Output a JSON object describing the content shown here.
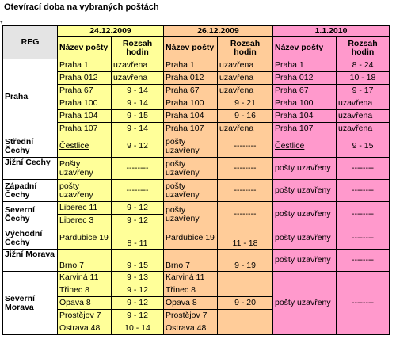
{
  "title": "Otevírací doba na vybraných poštách",
  "colors": {
    "yellow": "#ffff99",
    "orange": "#ffcc99",
    "pink": "#ff99cc",
    "reg": "#e4e4e4"
  },
  "header": {
    "reg": "REG",
    "dates": [
      "24.12.2009",
      "26.12.2009",
      "1.1.2010"
    ],
    "col_name": "Název pošty",
    "col_hours": "Rozsah hodin"
  },
  "regions": {
    "praha": "Praha",
    "stredni": "Střední Čechy",
    "jizni_cechy": "Jižní Čechy",
    "zapadni": "Západní Čechy",
    "severni_cechy": "Severní Čechy",
    "vychodni": "Východní Čechy",
    "jizni_morava": "Jižní Morava",
    "severni_morava": "Severní Morava"
  },
  "praha_rows": [
    {
      "d1n": "Praha 1",
      "d1h": "uzavřena",
      "d2n": "Praha 1",
      "d2h": "uzavřena",
      "d3n": "Praha 1",
      "d3h": "8 - 24"
    },
    {
      "d1n": "Praha 012",
      "d1h": "uzavřena",
      "d2n": "Praha 012",
      "d2h": "uzavřena",
      "d3n": "Praha 012",
      "d3h": "10 - 18"
    },
    {
      "d1n": "Praha 67",
      "d1h": "9 - 14",
      "d2n": "Praha 67",
      "d2h": "uzavřena",
      "d3n": "Praha 67",
      "d3h": "9 - 17"
    },
    {
      "d1n": "Praha 100",
      "d1h": "9 - 14",
      "d2n": "Praha 100",
      "d2h": "9 - 21",
      "d3n": "Praha 100",
      "d3h": "uzavřena"
    },
    {
      "d1n": "Praha 104",
      "d1h": "9 - 15",
      "d2n": "Praha 104",
      "d2h": "9 - 16",
      "d3n": "Praha 104",
      "d3h": "uzavřena"
    },
    {
      "d1n": "Praha 107",
      "d1h": "9 - 14",
      "d2n": "Praha 107",
      "d2h": "uzavřena",
      "d3n": "Praha 107",
      "d3h": "uzavřena"
    }
  ],
  "stredni": {
    "d1n": "Čestlice",
    "d1h": "9 - 12",
    "d2n": "pošty uzavřeny",
    "d2h": "--------",
    "d3n": "Čestlice",
    "d3h": "9 - 15"
  },
  "jizni_cechy": {
    "d1n": "Pošty uzavřeny",
    "d1h": "--------",
    "d2n": "pošty uzavřeny",
    "d2h": "--------",
    "d3n": "pošty uzavřeny",
    "d3h": "--------"
  },
  "zapadni": {
    "d1n": "pošty uzavřeny",
    "d1h": "--------",
    "d2n": "pošty uzavřeny",
    "d2h": "--------",
    "d3n": "pošty uzavřeny",
    "d3h": "--------"
  },
  "severni_cechy_rows": [
    {
      "d1n": "Liberec 11",
      "d1h": "9 - 12"
    },
    {
      "d1n": "Liberec 3",
      "d1h": "9 - 12"
    }
  ],
  "severni_cechy_shared": {
    "d2n": "pošty uzavřeny",
    "d2h": "--------",
    "d3n": "pošty uzavřeny",
    "d3h": "--------"
  },
  "vychodni": {
    "d1n": "Pardubice 19",
    "d1h": "8 - 11",
    "d2n": "Pardubice 19",
    "d2h": "11 - 18",
    "d3n": "pošty uzavřeny",
    "d3h": "--------"
  },
  "jizni_morava": {
    "d1n": "Brno 7",
    "d1h": "9 - 15",
    "d2n": "Brno 7",
    "d2h": "9 - 19",
    "d3n": "pošty uzavřeny",
    "d3h": "--------"
  },
  "severni_morava_rows": [
    {
      "d1n": "Karviná 11",
      "d1h": "9 - 13",
      "d2n": "Karviná 11",
      "d2h": ""
    },
    {
      "d1n": "Třinec 8",
      "d1h": "9 - 12",
      "d2n": "Třinec 8",
      "d2h": ""
    },
    {
      "d1n": "Opava 8",
      "d1h": "9 - 12",
      "d2n": "Opava 8",
      "d2h": "9 - 20"
    },
    {
      "d1n": "Prostějov 7",
      "d1h": "9 - 12",
      "d2n": "Prostějov 7",
      "d2h": ""
    },
    {
      "d1n": "Ostrava 48",
      "d1h": "10 - 14",
      "d2n": "Ostrava 48",
      "d2h": ""
    }
  ],
  "severni_morava_shared": {
    "d3n": "pošty uzavřeny",
    "d3h": "--------"
  }
}
